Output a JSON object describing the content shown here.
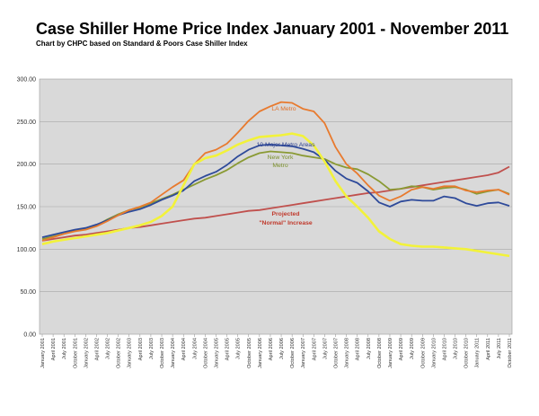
{
  "chart_data": {
    "type": "line",
    "title": "Case Shiller Home Price Index January 2001 - November 2011",
    "subtitle": "Chart by CHPC based on Standard & Poors Case Shiller Index",
    "ylim": [
      0,
      300
    ],
    "yticks": [
      "0.00",
      "50.00",
      "100.00",
      "150.00",
      "200.00",
      "250.00",
      "300.00"
    ],
    "xticks": [
      "January 2001",
      "April 2001",
      "July 2001",
      "October 2001",
      "January 2002",
      "April 2002",
      "July 2002",
      "October 2002",
      "January 2003",
      "April 2003",
      "July 2003",
      "October 2003",
      "January 2004",
      "April 2004",
      "July 2004",
      "October 2004",
      "January 2005",
      "April 2005",
      "July 2005",
      "October 2005",
      "January 2006",
      "April 2006",
      "July 2006",
      "October 2006",
      "January 2007",
      "April 2007",
      "July 2007",
      "October 2007",
      "January 2008",
      "April 2008",
      "July 2008",
      "October 2008",
      "January 2009",
      "April 2009",
      "July 2009",
      "October 2009",
      "January 2010",
      "April 2010",
      "July 2010",
      "October 2010",
      "January 2011",
      "April 2011",
      "July 2011",
      "October 2011"
    ],
    "grid": true,
    "annotations": [
      {
        "text": "LA Metro",
        "color": "#e0712a"
      },
      {
        "text": "10 Major Metro Areas",
        "color": "#2a3f8f"
      },
      {
        "text": "New York",
        "color": "#7a8f2a"
      },
      {
        "text": "Metro",
        "color": "#7a8f2a"
      },
      {
        "text": "Projected",
        "color": "#c0392b"
      },
      {
        "text": "\"Normal\" Increase",
        "color": "#c0392b"
      }
    ],
    "series": [
      {
        "key": "la",
        "color": "#e87a2e",
        "values": [
          110,
          114,
          118,
          121,
          123,
          127,
          133,
          140,
          146,
          150,
          155,
          164,
          173,
          181,
          200,
          213,
          217,
          224,
          237,
          251,
          262,
          268,
          273,
          272,
          265,
          262,
          248,
          220,
          200,
          189,
          175,
          163,
          157,
          162,
          170,
          173,
          171,
          174,
          174,
          169,
          167,
          169,
          170,
          164
        ]
      },
      {
        "key": "ten_metro",
        "color": "#2e4a9a",
        "values": [
          114,
          117,
          120,
          123,
          125,
          129,
          134,
          140,
          144,
          147,
          152,
          158,
          163,
          169,
          180,
          186,
          191,
          199,
          209,
          217,
          222,
          223,
          222,
          221,
          218,
          214,
          205,
          192,
          183,
          178,
          168,
          155,
          150,
          156,
          158,
          157,
          157,
          162,
          160,
          154,
          151,
          154,
          155,
          151
        ]
      },
      {
        "key": "new_york",
        "color": "#8a9a34",
        "values": [
          112,
          115,
          118,
          122,
          124,
          128,
          135,
          141,
          146,
          149,
          154,
          159,
          164,
          170,
          176,
          182,
          187,
          193,
          201,
          208,
          213,
          215,
          214,
          213,
          210,
          208,
          206,
          200,
          196,
          194,
          188,
          180,
          170,
          171,
          174,
          173,
          170,
          172,
          173,
          170,
          165,
          168,
          170,
          165
        ]
      },
      {
        "key": "yellow",
        "color": "#f2f23a",
        "values": [
          106,
          109,
          111,
          113,
          115,
          117,
          119,
          122,
          125,
          128,
          132,
          139,
          150,
          175,
          200,
          207,
          210,
          216,
          223,
          228,
          232,
          233,
          234,
          236,
          233,
          222,
          203,
          180,
          162,
          150,
          137,
          121,
          112,
          106,
          104,
          103,
          103,
          102,
          101,
          100,
          98,
          96,
          94,
          92
        ]
      },
      {
        "key": "projected",
        "color": "#c0504d",
        "values": [
          110,
          112,
          114,
          116,
          117,
          119,
          121,
          123,
          125,
          126,
          128,
          130,
          132,
          134,
          136,
          137,
          139,
          141,
          143,
          145,
          146,
          148,
          150,
          152,
          154,
          156,
          158,
          160,
          162,
          164,
          166,
          167,
          169,
          171,
          173,
          175,
          177,
          179,
          181,
          183,
          185,
          187,
          190,
          197
        ]
      }
    ]
  }
}
